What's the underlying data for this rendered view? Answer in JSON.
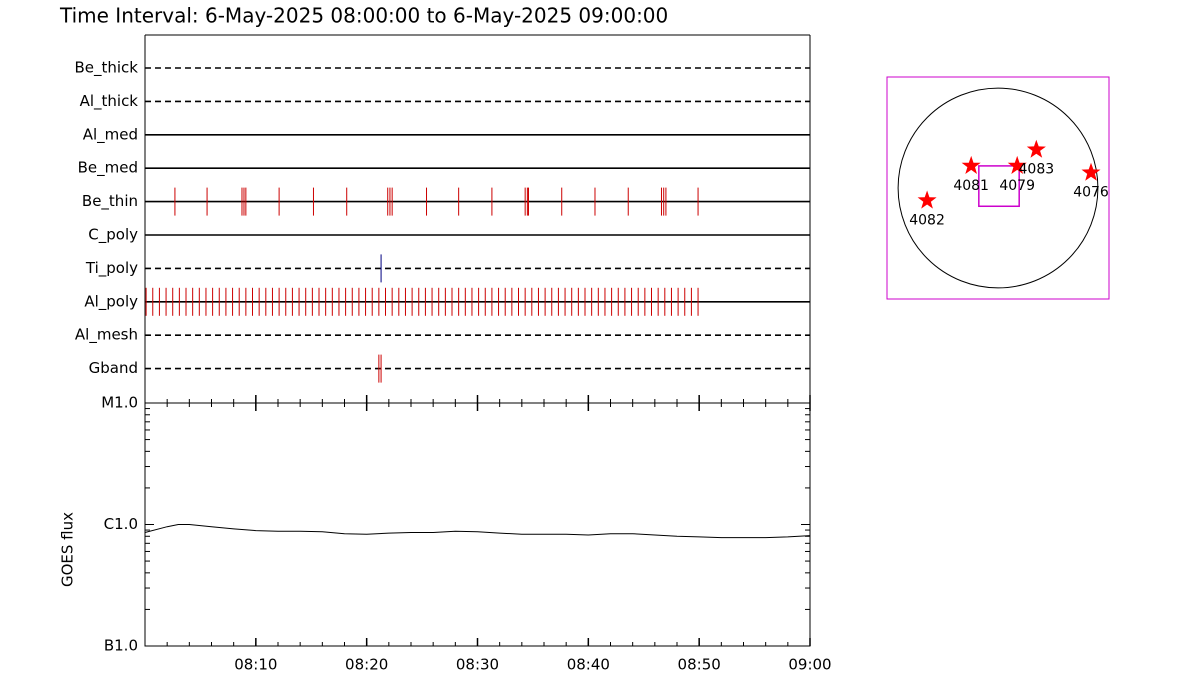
{
  "chart_data": [
    {
      "type": "timeline",
      "title": "Time Interval:  6-May-2025 08:00:00 to  6-May-2025 09:00:00",
      "xlim": [
        0,
        60
      ],
      "series": [
        {
          "name": "Be_thick",
          "line": "dashed",
          "events": []
        },
        {
          "name": "Al_thick",
          "line": "dashed",
          "events": []
        },
        {
          "name": "Al_med",
          "line": "solid",
          "events": []
        },
        {
          "name": "Be_med",
          "line": "solid",
          "events": []
        },
        {
          "name": "Be_thin",
          "line": "solid",
          "color": "#cc0000",
          "events": [
            2.7,
            5.6,
            8.75,
            8.93,
            9.1,
            12.1,
            15.2,
            18.2,
            21.9,
            22.1,
            22.3,
            25.4,
            28.3,
            31.3,
            34.3,
            34.5,
            34.6,
            37.6,
            40.6,
            43.6,
            46.6,
            46.8,
            47.0,
            49.9
          ]
        },
        {
          "name": "C_poly",
          "line": "solid",
          "events": []
        },
        {
          "name": "Ti_poly",
          "line": "dashed",
          "color": "#000080",
          "events": [
            21.3
          ]
        },
        {
          "name": "Al_poly",
          "line": "solid",
          "color": "#cc0000",
          "events": [
            0.1,
            0.7,
            1.3,
            1.9,
            2.5,
            3.1,
            3.7,
            4.3,
            4.9,
            5.5,
            6.1,
            6.7,
            7.3,
            7.9,
            8.5,
            9.1,
            9.7,
            10.3,
            10.9,
            11.5,
            12.1,
            12.7,
            13.3,
            13.9,
            14.5,
            15.1,
            15.7,
            16.3,
            16.9,
            17.5,
            18.1,
            18.7,
            19.3,
            19.9,
            20.5,
            21.1,
            21.7,
            22.3,
            22.9,
            23.5,
            24.1,
            24.7,
            25.3,
            25.9,
            26.5,
            27.1,
            27.7,
            28.3,
            28.9,
            29.5,
            30.1,
            30.7,
            31.3,
            31.9,
            32.5,
            33.1,
            33.7,
            34.3,
            34.9,
            35.5,
            36.1,
            36.7,
            37.3,
            37.9,
            38.5,
            39.1,
            39.7,
            40.3,
            40.9,
            41.5,
            42.1,
            42.7,
            43.3,
            43.9,
            44.5,
            45.1,
            45.7,
            46.3,
            46.9,
            47.5,
            48.1,
            48.7,
            49.3,
            49.9
          ]
        },
        {
          "name": "Al_mesh",
          "line": "dashed",
          "events": []
        },
        {
          "name": "Gband",
          "line": "dashed",
          "color": "#cc0000",
          "events": [
            21.1,
            21.3
          ]
        }
      ]
    },
    {
      "type": "line",
      "ylabel": "GOES flux",
      "log_y": true,
      "color": "#000000",
      "xlim": [
        0,
        60
      ],
      "xticks": [
        {
          "value": 10,
          "label": "08:10"
        },
        {
          "value": 20,
          "label": "08:20"
        },
        {
          "value": 30,
          "label": "08:30"
        },
        {
          "value": 40,
          "label": "08:40"
        },
        {
          "value": 50,
          "label": "08:50"
        },
        {
          "value": 60,
          "label": "09:00"
        }
      ],
      "ylim": [
        1e-07,
        1e-05
      ],
      "yticks": [
        {
          "value": 1e-07,
          "label": "B1.0"
        },
        {
          "value": 1e-06,
          "label": "C1.0"
        },
        {
          "value": 1e-05,
          "label": "M1.0"
        }
      ],
      "x": [
        0,
        2,
        3,
        4,
        6,
        8,
        10,
        12,
        14,
        16,
        18,
        20,
        22,
        24,
        26,
        28,
        30,
        32,
        34,
        36,
        38,
        40,
        42,
        44,
        46,
        48,
        50,
        52,
        54,
        56,
        58,
        60
      ],
      "values": [
        8.6e-07,
        9.6e-07,
        1e-06,
        1e-06,
        9.6e-07,
        9.2e-07,
        8.9e-07,
        8.8e-07,
        8.8e-07,
        8.7e-07,
        8.4e-07,
        8.3e-07,
        8.5e-07,
        8.6e-07,
        8.6e-07,
        8.8e-07,
        8.7e-07,
        8.5e-07,
        8.3e-07,
        8.3e-07,
        8.3e-07,
        8.2e-07,
        8.4e-07,
        8.4e-07,
        8.2e-07,
        8e-07,
        7.9e-07,
        7.8e-07,
        7.8e-07,
        7.8e-07,
        7.9e-07,
        8.1e-07
      ]
    },
    {
      "type": "map",
      "xlim": [
        -1100,
        1100
      ],
      "ylim": [
        -1100,
        1100
      ],
      "disk_radius": 990,
      "color": "#ff0000",
      "frame_color": "#cc00cc",
      "fov": {
        "x": 10,
        "y": 19,
        "width": 400,
        "height": 400
      },
      "points": [
        {
          "label": "4082",
          "x": -703,
          "y": -124
        },
        {
          "label": "4081",
          "x": -266,
          "y": 219
        },
        {
          "label": "4079",
          "x": 190,
          "y": 219
        },
        {
          "label": "4083",
          "x": 380,
          "y": 380
        },
        {
          "label": "4076",
          "x": 922,
          "y": 152
        }
      ]
    }
  ]
}
